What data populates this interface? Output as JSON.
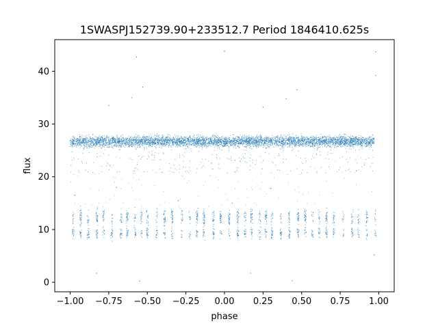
{
  "chart_data": {
    "type": "scatter",
    "title": "1SWASPJ152739.90+233512.7 Period 1846410.625s",
    "xlabel": "phase",
    "ylabel": "flux",
    "xlim": [
      -1.1,
      1.1
    ],
    "ylim": [
      -1.8,
      46
    ],
    "xticks": [
      -1.0,
      -0.75,
      -0.5,
      -0.25,
      0.0,
      0.25,
      0.5,
      0.75,
      1.0
    ],
    "xtick_labels": [
      "−1.00",
      "−0.75",
      "−0.50",
      "−0.25",
      "0.00",
      "0.25",
      "0.50",
      "0.75",
      "1.00"
    ],
    "yticks": [
      0,
      10,
      20,
      30,
      40
    ],
    "ytick_labels": [
      "0",
      "10",
      "20",
      "30",
      "40"
    ],
    "grid": false,
    "point_color": "#1f77b4",
    "series": [
      {
        "description_values": "folded light curve, x in phase [-1, 1], y in flux",
        "main_band": {
          "x_range": [
            -1.0,
            0.97
          ],
          "y_center": 26.7,
          "y_spread": 1.0
        },
        "upper_group": {
          "x_range": [
            -0.97,
            0.96
          ],
          "y_center": 12.3,
          "y_spread": 1.2
        },
        "lower_group": {
          "x_range": [
            -0.98,
            0.98
          ],
          "y_center": 9.3,
          "y_spread": 1.0
        },
        "outliers": [
          [
            -0.83,
            1.7
          ],
          [
            0.17,
            1.7
          ],
          [
            -0.55,
            0.2
          ],
          [
            0.44,
            0.3
          ],
          [
            0.0,
            43.8
          ],
          [
            0.98,
            43.7
          ],
          [
            -0.57,
            42.7
          ],
          [
            0.98,
            39.2
          ],
          [
            -0.53,
            37.0
          ],
          [
            0.47,
            36.5
          ],
          [
            -0.75,
            33.5
          ],
          [
            0.25,
            33.2
          ],
          [
            -0.6,
            35.0
          ],
          [
            0.4,
            34.8
          ],
          [
            -0.7,
            18.0
          ],
          [
            0.3,
            17.8
          ],
          [
            0.97,
            5.2
          ],
          [
            -0.97,
            16.5
          ],
          [
            0.05,
            15.0
          ],
          [
            -0.3,
            15.5
          ]
        ]
      }
    ]
  }
}
